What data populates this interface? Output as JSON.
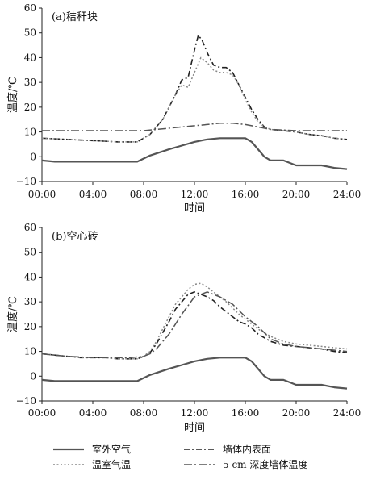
{
  "chart_data": [
    {
      "type": "line",
      "panel_label": "(a)秸秆块",
      "xlabel": "时间",
      "ylabel": "温度/℃",
      "x_ticks": [
        "00:00",
        "04:00",
        "08:00",
        "12:00",
        "16:00",
        "20:00",
        "24:00"
      ],
      "y_ticks": [
        "60",
        "50",
        "40",
        "30",
        "20",
        "10",
        "0",
        "−10"
      ],
      "xlim": [
        0,
        24
      ],
      "ylim": [
        -10,
        60
      ],
      "grid": false,
      "series": [
        {
          "name": "室外空气",
          "x": [
            0,
            1,
            2,
            4,
            6,
            7.5,
            8.5,
            10,
            11,
            12,
            13,
            14,
            15,
            16,
            16.5,
            17,
            17.5,
            18,
            19,
            20,
            21,
            22,
            23,
            24
          ],
          "y": [
            -1.5,
            -2,
            -2,
            -2,
            -2,
            -2,
            0.5,
            3,
            4.5,
            6,
            7,
            7.5,
            7.5,
            7.5,
            6,
            3,
            0,
            -1.5,
            -1.5,
            -3.5,
            -3.5,
            -3.5,
            -4.5,
            -5
          ]
        },
        {
          "name": "墙体内表面",
          "x": [
            0,
            2,
            4,
            6,
            7.5,
            8.5,
            9.5,
            10.5,
            11,
            11.5,
            12,
            12.3,
            12.6,
            13,
            13.5,
            14,
            14.5,
            15,
            15.5,
            16,
            16.5,
            17,
            17.5,
            18,
            19,
            20,
            21,
            22,
            23,
            24
          ],
          "y": [
            7.5,
            7,
            6.5,
            6,
            6,
            9,
            15,
            25,
            31,
            32,
            43,
            49,
            47,
            42,
            37,
            36,
            36,
            34,
            29,
            24,
            19,
            15,
            12,
            11,
            10.5,
            10,
            9,
            8.5,
            7.5,
            7
          ]
        },
        {
          "name": "温室气温",
          "x": [
            0,
            2,
            4,
            6,
            7.5,
            8.5,
            9.5,
            10.5,
            11,
            11.5,
            12,
            12.5,
            13,
            13.5,
            14,
            14.5,
            15,
            15.5,
            16,
            16.5,
            17,
            17.5,
            18,
            19,
            20,
            21,
            22,
            23,
            24
          ],
          "y": [
            7.5,
            7,
            6.5,
            6,
            6,
            9,
            15,
            25,
            29,
            28,
            34,
            40,
            38,
            35,
            34,
            34,
            33,
            29,
            23,
            18,
            14,
            12,
            11,
            10.5,
            10,
            9,
            8.5,
            7.5,
            7
          ]
        },
        {
          "name": "5 cm 深度墙体温度",
          "x": [
            0,
            2,
            4,
            6,
            8,
            9,
            10,
            11,
            12,
            13,
            14,
            15,
            16,
            17,
            18,
            20,
            22,
            24
          ],
          "y": [
            10.5,
            10.5,
            10.5,
            10.5,
            10.5,
            11,
            11.5,
            12,
            12.5,
            13,
            13.5,
            13.5,
            13,
            12,
            11,
            10.5,
            10.5,
            10.5
          ]
        }
      ]
    },
    {
      "type": "line",
      "panel_label": "(b)空心砖",
      "xlabel": "时间",
      "ylabel": "温度/℃",
      "x_ticks": [
        "00:00",
        "04:00",
        "08:00",
        "12:00",
        "16:00",
        "20:00",
        "24:00"
      ],
      "y_ticks": [
        "60",
        "50",
        "40",
        "30",
        "20",
        "10",
        "0",
        "−10"
      ],
      "xlim": [
        0,
        24
      ],
      "ylim": [
        -10,
        60
      ],
      "grid": false,
      "series": [
        {
          "name": "室外空气",
          "x": [
            0,
            1,
            2,
            4,
            6,
            7.5,
            8.5,
            10,
            11,
            12,
            13,
            14,
            15,
            16,
            16.5,
            17,
            17.5,
            18,
            19,
            20,
            21,
            22,
            23,
            24
          ],
          "y": [
            -1.5,
            -2,
            -2,
            -2,
            -2,
            -2,
            0.5,
            3,
            4.5,
            6,
            7,
            7.5,
            7.5,
            7.5,
            6,
            3,
            0,
            -1.5,
            -1.5,
            -3.5,
            -3.5,
            -3.5,
            -4.5,
            -5
          ]
        },
        {
          "name": "墙体内表面",
          "x": [
            0,
            1,
            2,
            3,
            4,
            5,
            6,
            7,
            7.5,
            8,
            8.5,
            9,
            9.5,
            10,
            10.5,
            11,
            11.5,
            12,
            12.5,
            13,
            13.5,
            14,
            14.5,
            15,
            15.5,
            16,
            16.5,
            17,
            18,
            19,
            20,
            21,
            22,
            23,
            24
          ],
          "y": [
            9,
            8.5,
            8,
            7.5,
            7.5,
            7.5,
            7,
            7,
            7,
            8,
            9.5,
            13,
            17.5,
            22,
            27,
            30,
            33,
            34,
            33,
            32,
            30.5,
            28,
            26,
            24,
            22,
            21,
            19.5,
            17,
            14,
            12.5,
            12,
            11.5,
            11,
            10,
            9.5
          ]
        },
        {
          "name": "温室气温",
          "x": [
            0,
            1,
            2,
            3,
            4,
            5,
            6,
            7,
            7.5,
            8,
            8.5,
            9,
            9.5,
            10,
            10.5,
            11,
            11.5,
            12,
            12.5,
            13,
            13.5,
            14,
            14.5,
            15,
            15.5,
            16,
            16.5,
            17,
            18,
            19,
            20,
            21,
            22,
            23,
            24
          ],
          "y": [
            9,
            8.5,
            8,
            7.5,
            7.5,
            7.5,
            7,
            7,
            7,
            8,
            10,
            14,
            19,
            24,
            29,
            32,
            35,
            37,
            37.5,
            36,
            34,
            32,
            30,
            27.5,
            25,
            23,
            21,
            19,
            16,
            14,
            13,
            12.5,
            12,
            11.5,
            11
          ]
        },
        {
          "name": "5 cm 深度墙体温度",
          "x": [
            0,
            2,
            4,
            6,
            7,
            8,
            8.5,
            9,
            10,
            11,
            12,
            13,
            14,
            15,
            16,
            17,
            18,
            19,
            20,
            22,
            24
          ],
          "y": [
            9,
            8,
            7.5,
            7.5,
            7.5,
            8,
            9,
            11,
            17,
            25,
            32,
            34,
            32,
            29,
            24,
            20,
            15,
            13,
            12,
            11,
            10
          ]
        }
      ]
    }
  ],
  "legend": {
    "placement": "bottom",
    "entries": [
      {
        "label": "室外空气",
        "style": "solid"
      },
      {
        "label": "墙体内表面",
        "style": "dash-dot"
      },
      {
        "label": "温室气温",
        "style": "dotted"
      },
      {
        "label": "5 cm 深度墙体温度",
        "style": "long-dash-dot"
      }
    ]
  }
}
